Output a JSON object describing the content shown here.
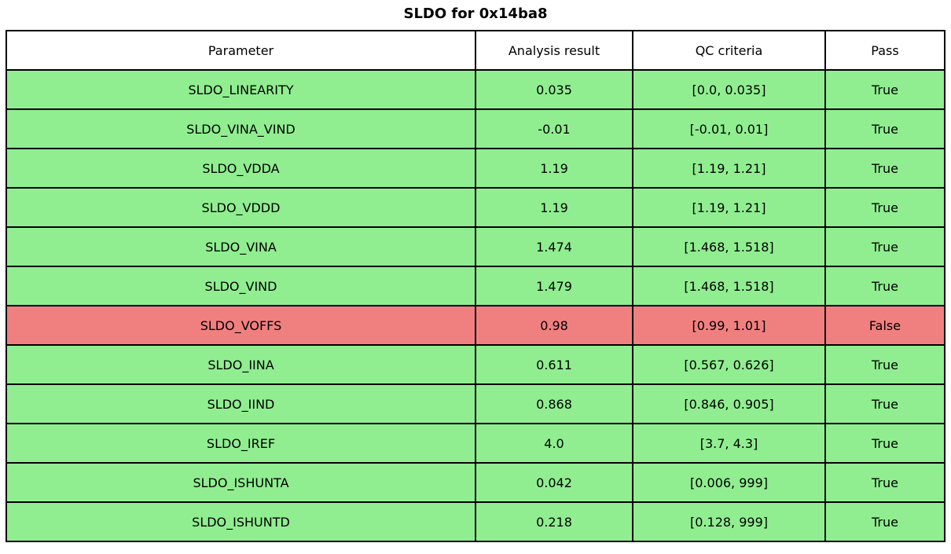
{
  "title": "SLDO for 0x14ba8",
  "colors": {
    "pass_row": "#90EE90",
    "fail_row": "#F08080",
    "border": "#000000",
    "header_bg": "#FFFFFF"
  },
  "table": {
    "columns": [
      "Parameter",
      "Analysis result",
      "QC criteria",
      "Pass"
    ],
    "rows": [
      {
        "parameter": "SLDO_LINEARITY",
        "analysis_result": "0.035",
        "qc_criteria": "[0.0, 0.035]",
        "pass": "True",
        "status": "pass"
      },
      {
        "parameter": "SLDO_VINA_VIND",
        "analysis_result": "-0.01",
        "qc_criteria": "[-0.01, 0.01]",
        "pass": "True",
        "status": "pass"
      },
      {
        "parameter": "SLDO_VDDA",
        "analysis_result": "1.19",
        "qc_criteria": "[1.19, 1.21]",
        "pass": "True",
        "status": "pass"
      },
      {
        "parameter": "SLDO_VDDD",
        "analysis_result": "1.19",
        "qc_criteria": "[1.19, 1.21]",
        "pass": "True",
        "status": "pass"
      },
      {
        "parameter": "SLDO_VINA",
        "analysis_result": "1.474",
        "qc_criteria": "[1.468, 1.518]",
        "pass": "True",
        "status": "pass"
      },
      {
        "parameter": "SLDO_VIND",
        "analysis_result": "1.479",
        "qc_criteria": "[1.468, 1.518]",
        "pass": "True",
        "status": "pass"
      },
      {
        "parameter": "SLDO_VOFFS",
        "analysis_result": "0.98",
        "qc_criteria": "[0.99, 1.01]",
        "pass": "False",
        "status": "fail"
      },
      {
        "parameter": "SLDO_IINA",
        "analysis_result": "0.611",
        "qc_criteria": "[0.567, 0.626]",
        "pass": "True",
        "status": "pass"
      },
      {
        "parameter": "SLDO_IIND",
        "analysis_result": "0.868",
        "qc_criteria": "[0.846, 0.905]",
        "pass": "True",
        "status": "pass"
      },
      {
        "parameter": "SLDO_IREF",
        "analysis_result": "4.0",
        "qc_criteria": "[3.7, 4.3]",
        "pass": "True",
        "status": "pass"
      },
      {
        "parameter": "SLDO_ISHUNTA",
        "analysis_result": "0.042",
        "qc_criteria": "[0.006, 999]",
        "pass": "True",
        "status": "pass"
      },
      {
        "parameter": "SLDO_ISHUNTD",
        "analysis_result": "0.218",
        "qc_criteria": "[0.128, 999]",
        "pass": "True",
        "status": "pass"
      }
    ]
  }
}
